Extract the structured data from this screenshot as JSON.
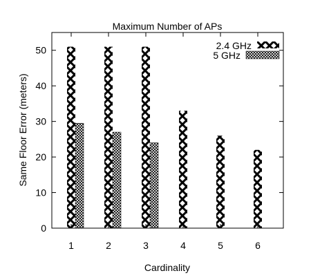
{
  "chart_data": {
    "type": "bar",
    "title": "Maximum Number of APs",
    "xlabel": "Cardinality",
    "ylabel": "Same Floor Error (meters)",
    "categories": [
      "1",
      "2",
      "3",
      "4",
      "5",
      "6"
    ],
    "ylim": [
      0,
      55
    ],
    "yticks": [
      "0",
      "10",
      "20",
      "30",
      "40",
      "50"
    ],
    "series": [
      {
        "name": "2.4 GHz",
        "values": [
          51,
          51,
          51,
          33,
          26,
          22
        ],
        "pattern": "big-x"
      },
      {
        "name": "5 GHz",
        "values": [
          29.5,
          27,
          24,
          null,
          null,
          null
        ],
        "pattern": "crosshatch"
      }
    ],
    "legend_position": "top-right",
    "grid": false
  }
}
